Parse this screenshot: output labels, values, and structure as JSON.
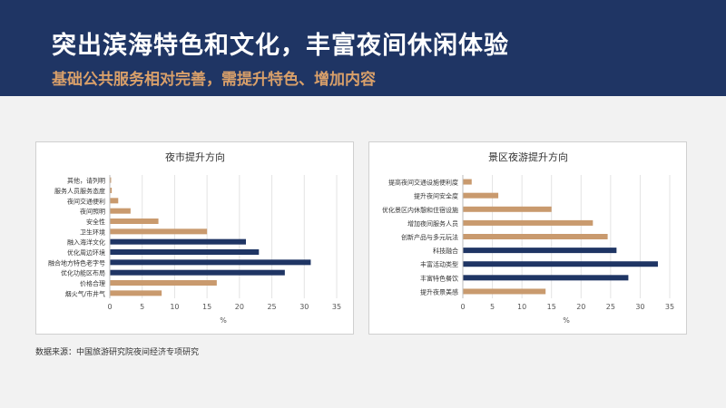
{
  "header": {
    "title": "突出滨海特色和文化，丰富夜间休闲体验",
    "subtitle": "基础公共服务相对完善，需提升特色、增加内容"
  },
  "source": "数据来源：中国旅游研究院夜间经济专项研究",
  "colors": {
    "header_bg": "#1f3564",
    "navy": "#1f3564",
    "tan": "#c99a6e",
    "subtitle": "#d9a06a"
  },
  "chart_data": [
    {
      "type": "bar",
      "orientation": "horizontal",
      "title": "夜市提升方向",
      "xlabel": "%",
      "xlim": [
        0,
        35
      ],
      "xticks": [
        0,
        5,
        10,
        15,
        20,
        25,
        30,
        35
      ],
      "grid": true,
      "categories": [
        "其他，请列明",
        "服务人员服务态度",
        "夜间交通便利",
        "夜间照明",
        "安全性",
        "卫生环境",
        "融入海洋文化",
        "优化周边环境",
        "融合地方特色老字号",
        "优化功能区布局",
        "价格合理",
        "烟火气/市井气"
      ],
      "values": [
        0.2,
        0.3,
        1.3,
        3.2,
        7.5,
        15,
        21,
        23,
        31,
        27,
        16.5,
        8
      ],
      "bar_colors": [
        "tan",
        "tan",
        "tan",
        "tan",
        "tan",
        "tan",
        "navy",
        "navy",
        "navy",
        "navy",
        "tan",
        "tan"
      ]
    },
    {
      "type": "bar",
      "orientation": "horizontal",
      "title": "景区夜游提升方向",
      "xlabel": "%",
      "xlim": [
        0,
        35
      ],
      "xticks": [
        0,
        5,
        10,
        15,
        20,
        25,
        30,
        35
      ],
      "grid": true,
      "categories": [
        "提高夜间交通设施便利度",
        "提升夜间安全度",
        "优化景区内休憩和住宿设施",
        "增加夜间服务人员",
        "创新产品与多元玩法",
        "科技融合",
        "丰富活动类型",
        "丰富特色餐饮",
        "提升夜景美感"
      ],
      "values": [
        1.5,
        6,
        15,
        22,
        24.5,
        26,
        33,
        28,
        14
      ],
      "bar_colors": [
        "tan",
        "tan",
        "tan",
        "tan",
        "tan",
        "navy",
        "navy",
        "navy",
        "tan"
      ]
    }
  ]
}
